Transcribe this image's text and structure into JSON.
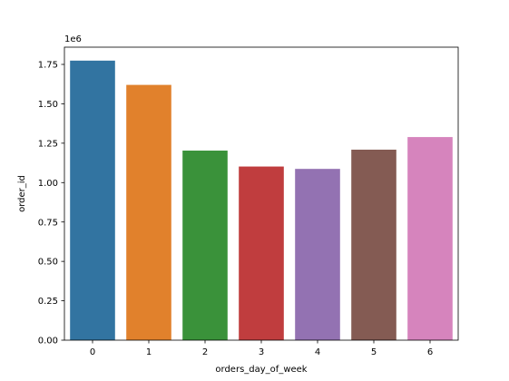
{
  "chart_data": {
    "type": "bar",
    "categories": [
      "0",
      "1",
      "2",
      "3",
      "4",
      "5",
      "6"
    ],
    "values": [
      1774000,
      1620000,
      1203000,
      1102000,
      1087000,
      1209000,
      1289000
    ],
    "colors": [
      "#3274a1",
      "#e1812c",
      "#3a923a",
      "#c03d3e",
      "#9372b2",
      "#845b53",
      "#d684bd"
    ],
    "xlabel": "orders_day_of_week",
    "ylabel": "order_id",
    "y_offset_label": "1e6",
    "ylim": [
      0,
      1750000
    ],
    "y_ticks": [
      0,
      250000,
      500000,
      750000,
      1000000,
      1250000,
      1500000,
      1750000
    ],
    "y_tick_labels": [
      "0.00",
      "0.25",
      "0.50",
      "0.75",
      "1.00",
      "1.25",
      "1.50",
      "1.75"
    ],
    "grid": false,
    "legend": false
  }
}
